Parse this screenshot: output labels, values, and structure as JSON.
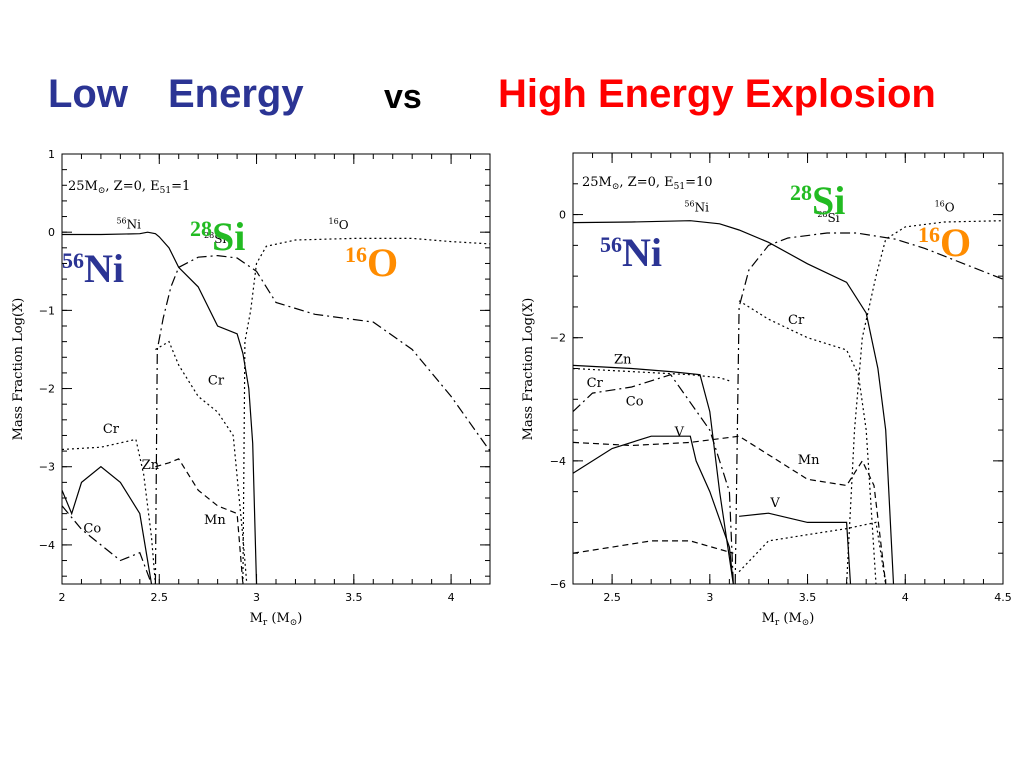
{
  "title": {
    "left_a": "Low",
    "left_b": "Energy",
    "middle": "vs",
    "right": "High Energy Explosion",
    "colors": {
      "low": "#2b3494",
      "vs": "#000000",
      "high": "#ff0000"
    }
  },
  "big_labels": {
    "ni": {
      "mass": "56",
      "el": "Ni",
      "color": "#2b3494"
    },
    "si": {
      "mass": "28",
      "el": "Si",
      "color": "#22bb22"
    },
    "o": {
      "mass": "16",
      "el": "O",
      "color": "#ff8c00"
    }
  },
  "chart_data": [
    {
      "type": "line",
      "caption": {
        "a": "25M",
        "b": ", Z=0, E",
        "sub": "51",
        "c": "=1"
      },
      "xlabel": {
        "a": "M",
        "sub": "r",
        "b": " (M",
        "c": ")"
      },
      "ylabel": "Mass Fraction Log(X)",
      "xlim": [
        2.0,
        4.2
      ],
      "ylim": [
        -4.5,
        1.0
      ],
      "xticks": [
        "2",
        "2.5",
        "3",
        "3.5",
        "4"
      ],
      "yticks": [
        "1",
        "0",
        "−1",
        "−2",
        "−3",
        "−4"
      ],
      "grid": false,
      "labels": [
        {
          "text": "Ni",
          "iso": "56",
          "x": 2.28,
          "y": 0.05
        },
        {
          "text": "Si",
          "iso": "28",
          "x": 2.73,
          "y": -0.14
        },
        {
          "text": "O",
          "iso": "16",
          "x": 3.37,
          "y": 0.04
        },
        {
          "text": "Cr",
          "x": 2.21,
          "y": -2.57
        },
        {
          "text": "Zn",
          "x": 2.41,
          "y": -3.03
        },
        {
          "text": "Co",
          "x": 2.11,
          "y": -3.84
        },
        {
          "text": "Cr",
          "x": 2.75,
          "y": -1.95
        },
        {
          "text": "Mn",
          "x": 2.73,
          "y": -3.73
        }
      ],
      "series": [
        {
          "id": "ni",
          "dash": "",
          "points": [
            [
              2.0,
              -0.03
            ],
            [
              2.2,
              -0.03
            ],
            [
              2.4,
              -0.02
            ],
            [
              2.44,
              0.0
            ],
            [
              2.48,
              -0.02
            ],
            [
              2.5,
              -0.06
            ],
            [
              2.55,
              -0.2
            ],
            [
              2.6,
              -0.45
            ],
            [
              2.7,
              -0.7
            ],
            [
              2.8,
              -1.2
            ],
            [
              2.9,
              -1.3
            ],
            [
              2.93,
              -1.55
            ],
            [
              2.96,
              -2.0
            ],
            [
              2.98,
              -2.7
            ],
            [
              3.0,
              -4.5
            ]
          ]
        },
        {
          "id": "si",
          "dash": "10 4 2 4",
          "points": [
            [
              2.48,
              -4.5
            ],
            [
              2.49,
              -1.5
            ],
            [
              2.52,
              -1.1
            ],
            [
              2.56,
              -0.7
            ],
            [
              2.6,
              -0.45
            ],
            [
              2.7,
              -0.32
            ],
            [
              2.8,
              -0.3
            ],
            [
              2.9,
              -0.33
            ],
            [
              3.0,
              -0.5
            ],
            [
              3.1,
              -0.9
            ],
            [
              3.3,
              -1.05
            ],
            [
              3.6,
              -1.15
            ],
            [
              3.8,
              -1.5
            ],
            [
              4.0,
              -2.1
            ],
            [
              4.2,
              -2.8
            ]
          ]
        },
        {
          "id": "o",
          "dash": "2 3",
          "points": [
            [
              2.93,
              -4.5
            ],
            [
              2.94,
              -1.4
            ],
            [
              2.97,
              -1.0
            ],
            [
              3.0,
              -0.4
            ],
            [
              3.05,
              -0.18
            ],
            [
              3.2,
              -0.1
            ],
            [
              3.5,
              -0.08
            ],
            [
              3.8,
              -0.08
            ],
            [
              4.0,
              -0.12
            ],
            [
              4.2,
              -0.15
            ]
          ]
        },
        {
          "id": "cr",
          "dash": "2 3",
          "points": [
            [
              2.0,
              -2.78
            ],
            [
              2.2,
              -2.75
            ],
            [
              2.38,
              -2.65
            ],
            [
              2.42,
              -3.1
            ],
            [
              2.46,
              -3.9
            ],
            [
              2.48,
              -4.5
            ]
          ]
        },
        {
          "id": "cr2",
          "dash": "2 3",
          "points": [
            [
              2.48,
              -1.5
            ],
            [
              2.55,
              -1.4
            ],
            [
              2.6,
              -1.7
            ],
            [
              2.7,
              -2.1
            ],
            [
              2.8,
              -2.3
            ],
            [
              2.88,
              -2.6
            ],
            [
              2.93,
              -3.9
            ],
            [
              2.95,
              -4.5
            ]
          ]
        },
        {
          "id": "zn",
          "dash": "",
          "points": [
            [
              2.0,
              -3.3
            ],
            [
              2.05,
              -3.6
            ],
            [
              2.1,
              -3.2
            ],
            [
              2.2,
              -3.0
            ],
            [
              2.3,
              -3.2
            ],
            [
              2.4,
              -3.6
            ],
            [
              2.46,
              -4.5
            ]
          ]
        },
        {
          "id": "co",
          "dash": "10 4 2 4",
          "points": [
            [
              2.0,
              -3.5
            ],
            [
              2.1,
              -3.8
            ],
            [
              2.2,
              -4.0
            ],
            [
              2.3,
              -4.2
            ],
            [
              2.4,
              -4.1
            ],
            [
              2.46,
              -4.5
            ]
          ]
        },
        {
          "id": "mn",
          "dash": "6 4",
          "points": [
            [
              2.48,
              -3.0
            ],
            [
              2.55,
              -2.95
            ],
            [
              2.6,
              -2.9
            ],
            [
              2.7,
              -3.3
            ],
            [
              2.8,
              -3.5
            ],
            [
              2.9,
              -3.6
            ],
            [
              2.93,
              -4.5
            ]
          ]
        }
      ]
    },
    {
      "type": "line",
      "caption": {
        "a": "25M",
        "b": ", Z=0, E",
        "sub": "51",
        "c": "=10"
      },
      "xlabel": {
        "a": "M",
        "sub": "r",
        "b": " (M",
        "c": ")"
      },
      "ylabel": "Mass Fraction Log(X)",
      "xlim": [
        2.3,
        4.5
      ],
      "ylim": [
        -6.0,
        1.0
      ],
      "xticks": [
        "2.5",
        "3",
        "3.5",
        "4",
        "4.5"
      ],
      "yticks": [
        "0",
        "−2",
        "−4",
        "−6"
      ],
      "grid": false,
      "labels": [
        {
          "text": "Ni",
          "iso": "56",
          "x": 2.87,
          "y": 0.05
        },
        {
          "text": "Si",
          "iso": "28",
          "x": 3.55,
          "y": -0.12
        },
        {
          "text": "O",
          "iso": "16",
          "x": 4.15,
          "y": 0.05
        },
        {
          "text": "Cr",
          "x": 3.4,
          "y": -1.78
        },
        {
          "text": "Zn",
          "x": 2.51,
          "y": -2.42
        },
        {
          "text": "Cr",
          "x": 2.37,
          "y": -2.8
        },
        {
          "text": "Co",
          "x": 2.57,
          "y": -3.1
        },
        {
          "text": "V",
          "x": 2.82,
          "y": -3.6
        },
        {
          "text": "Mn",
          "x": 3.45,
          "y": -4.05
        },
        {
          "text": "V",
          "x": 3.31,
          "y": -4.75
        }
      ],
      "series": [
        {
          "id": "ni",
          "dash": "",
          "points": [
            [
              2.3,
              -0.13
            ],
            [
              2.6,
              -0.12
            ],
            [
              2.9,
              -0.1
            ],
            [
              3.05,
              -0.15
            ],
            [
              3.15,
              -0.25
            ],
            [
              3.3,
              -0.45
            ],
            [
              3.5,
              -0.8
            ],
            [
              3.7,
              -1.1
            ],
            [
              3.8,
              -1.6
            ],
            [
              3.86,
              -2.5
            ],
            [
              3.9,
              -3.5
            ],
            [
              3.94,
              -6.0
            ]
          ]
        },
        {
          "id": "si",
          "dash": "10 4 2 4",
          "points": [
            [
              3.13,
              -6.0
            ],
            [
              3.15,
              -1.5
            ],
            [
              3.2,
              -0.9
            ],
            [
              3.3,
              -0.5
            ],
            [
              3.4,
              -0.38
            ],
            [
              3.6,
              -0.3
            ],
            [
              3.75,
              -0.3
            ],
            [
              3.85,
              -0.35
            ],
            [
              3.95,
              -0.4
            ],
            [
              4.1,
              -0.55
            ],
            [
              4.3,
              -0.8
            ],
            [
              4.5,
              -1.05
            ]
          ]
        },
        {
          "id": "o",
          "dash": "2 3",
          "points": [
            [
              3.7,
              -6.0
            ],
            [
              3.74,
              -3.5
            ],
            [
              3.78,
              -2.0
            ],
            [
              3.85,
              -1.0
            ],
            [
              3.9,
              -0.4
            ],
            [
              4.0,
              -0.2
            ],
            [
              4.2,
              -0.12
            ],
            [
              4.5,
              -0.1
            ]
          ]
        },
        {
          "id": "cr2",
          "dash": "2 3",
          "points": [
            [
              3.15,
              -1.4
            ],
            [
              3.3,
              -1.7
            ],
            [
              3.5,
              -2.0
            ],
            [
              3.7,
              -2.2
            ],
            [
              3.76,
              -2.6
            ],
            [
              3.8,
              -3.5
            ],
            [
              3.85,
              -6.0
            ]
          ]
        },
        {
          "id": "zn",
          "dash": "",
          "points": [
            [
              2.3,
              -2.45
            ],
            [
              2.6,
              -2.5
            ],
            [
              2.8,
              -2.55
            ],
            [
              2.95,
              -2.6
            ],
            [
              3.0,
              -3.2
            ],
            [
              3.05,
              -4.5
            ],
            [
              3.12,
              -6.0
            ]
          ]
        },
        {
          "id": "cr",
          "dash": "2 3",
          "points": [
            [
              2.3,
              -2.5
            ],
            [
              2.6,
              -2.55
            ],
            [
              2.9,
              -2.6
            ],
            [
              3.05,
              -2.65
            ],
            [
              3.1,
              -2.7
            ]
          ]
        },
        {
          "id": "co",
          "dash": "10 4 2 4",
          "points": [
            [
              2.3,
              -3.2
            ],
            [
              2.4,
              -2.9
            ],
            [
              2.6,
              -2.8
            ],
            [
              2.8,
              -2.6
            ],
            [
              3.0,
              -3.5
            ],
            [
              3.1,
              -4.5
            ],
            [
              3.12,
              -6.0
            ]
          ]
        },
        {
          "id": "v",
          "dash": "",
          "points": [
            [
              2.3,
              -4.2
            ],
            [
              2.5,
              -3.8
            ],
            [
              2.7,
              -3.6
            ],
            [
              2.9,
              -3.6
            ],
            [
              2.93,
              -4.0
            ],
            [
              3.0,
              -4.5
            ],
            [
              3.1,
              -5.4
            ],
            [
              3.12,
              -6.0
            ]
          ]
        },
        {
          "id": "mn",
          "dash": "6 4",
          "points": [
            [
              2.3,
              -3.7
            ],
            [
              2.6,
              -3.75
            ],
            [
              2.9,
              -3.7
            ],
            [
              3.15,
              -3.6
            ],
            [
              3.3,
              -3.9
            ],
            [
              3.5,
              -4.3
            ],
            [
              3.7,
              -4.4
            ],
            [
              3.78,
              -4.0
            ],
            [
              3.84,
              -4.4
            ],
            [
              3.9,
              -6.0
            ]
          ]
        },
        {
          "id": "v2",
          "dash": "",
          "points": [
            [
              3.15,
              -4.9
            ],
            [
              3.3,
              -4.85
            ],
            [
              3.5,
              -5.0
            ],
            [
              3.7,
              -5.0
            ],
            [
              3.72,
              -6.0
            ]
          ]
        },
        {
          "id": "cox",
          "dash": "6 4",
          "points": [
            [
              2.3,
              -5.5
            ],
            [
              2.5,
              -5.4
            ],
            [
              2.7,
              -5.3
            ],
            [
              2.9,
              -5.3
            ],
            [
              3.12,
              -5.5
            ]
          ]
        },
        {
          "id": "mnx",
          "dash": "2 3",
          "points": [
            [
              3.15,
              -5.8
            ],
            [
              3.3,
              -5.3
            ],
            [
              3.5,
              -5.2
            ],
            [
              3.7,
              -5.1
            ],
            [
              3.85,
              -5.0
            ],
            [
              3.9,
              -6.0
            ]
          ]
        }
      ]
    }
  ]
}
